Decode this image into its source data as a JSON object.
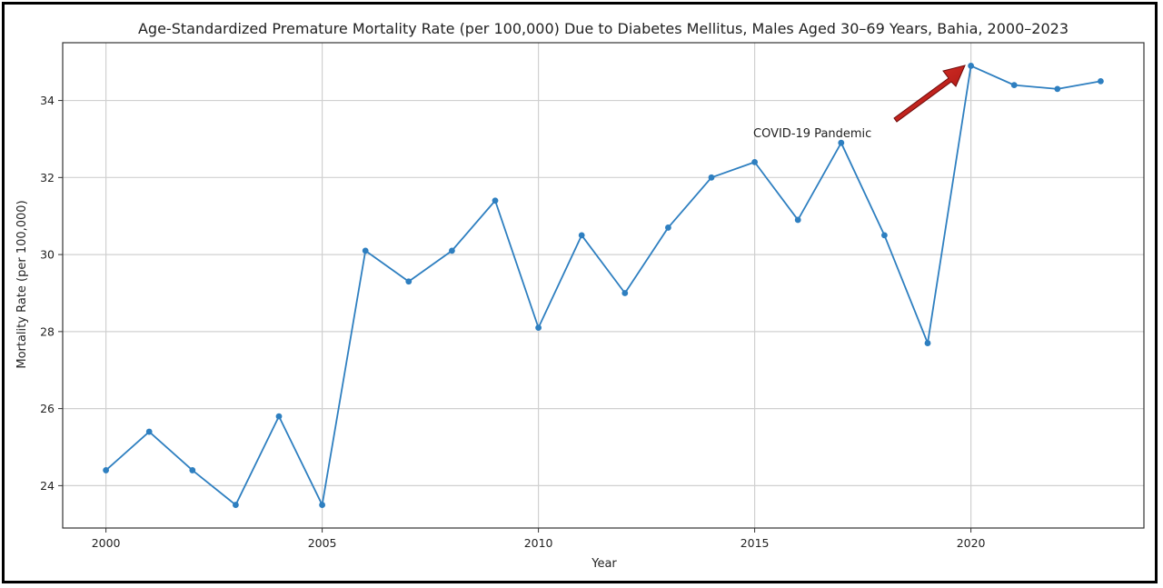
{
  "chart_data": {
    "type": "line",
    "title": "Age-Standardized Premature Mortality Rate (per 100,000) Due to Diabetes Mellitus, Males Aged 30–69 Years, Bahia, 2000–2023",
    "xlabel": "Year",
    "ylabel": "Mortality Rate (per 100,000)",
    "x": [
      2000,
      2001,
      2002,
      2003,
      2004,
      2005,
      2006,
      2007,
      2008,
      2009,
      2010,
      2011,
      2012,
      2013,
      2014,
      2015,
      2016,
      2017,
      2018,
      2019,
      2020,
      2021,
      2022,
      2023
    ],
    "series": [
      {
        "values": [
          24.4,
          25.4,
          24.4,
          23.5,
          25.8,
          23.5,
          30.1,
          29.3,
          30.1,
          31.4,
          28.1,
          30.5,
          29.0,
          30.7,
          32.0,
          32.4,
          30.9,
          32.9,
          30.5,
          27.7,
          34.9,
          34.4,
          34.3,
          34.5
        ],
        "color": "#2e7fc0"
      }
    ],
    "xticks": [
      "2000",
      "2005",
      "2010",
      "2015",
      "2020"
    ],
    "yticks": [
      "24",
      "26",
      "28",
      "30",
      "32",
      "34"
    ],
    "xlim": [
      1999,
      2024
    ],
    "ylim": [
      22.9,
      35.5
    ],
    "grid": true,
    "marker": "circle",
    "annotation": {
      "text": "COVID-19 Pandemic",
      "points_to_year": 2020,
      "arrow_color": "#d11a1a"
    }
  }
}
